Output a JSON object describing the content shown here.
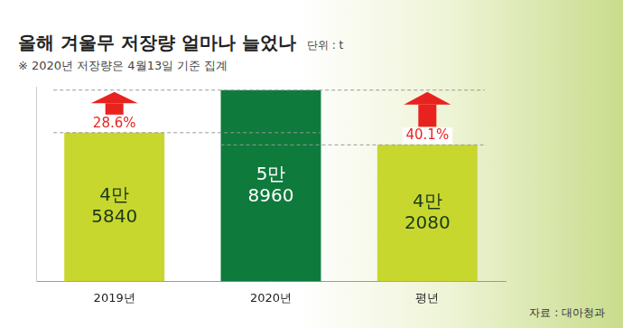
{
  "chart_data": {
    "type": "bar",
    "title": "올해 겨울무 저장량 얼마나 늘었나",
    "unit": "단위 : t",
    "subtitle": "※ 2020년 저장량은 4월13일 기준 집계",
    "source": "자료 : 대아청과",
    "categories": [
      "2019년",
      "2020년",
      "평년"
    ],
    "values": [
      45840,
      58960,
      42080
    ],
    "value_labels": [
      "4만\n5840",
      "5만\n8960",
      "4만\n2080"
    ],
    "colors": [
      "#c8d72e",
      "#0e7a3c",
      "#c8d72e"
    ],
    "ylim": [
      0,
      60000
    ],
    "grid": false,
    "tick_labels": "x",
    "data_labels": true,
    "annotations": [
      {
        "text": "28.6%",
        "category": "2019년"
      },
      {
        "text": "40.1%",
        "category": "평년"
      }
    ]
  }
}
